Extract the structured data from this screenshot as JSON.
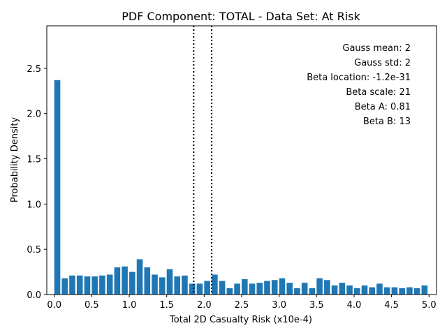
{
  "chart_data": {
    "type": "bar",
    "title": "PDF Component: TOTAL - Data Set: At Risk",
    "xlabel": "Total 2D Casualty Risk (x10e-4)",
    "ylabel": "Probability Density",
    "xlim": [
      -0.1,
      5.1
    ],
    "ylim": [
      0,
      2.97
    ],
    "bar_width": 0.08,
    "bar_color": "#1f77b4",
    "xticks": [
      0.0,
      0.5,
      1.0,
      1.5,
      2.0,
      2.5,
      3.0,
      3.5,
      4.0,
      4.5,
      5.0
    ],
    "xtick_labels": [
      "0.0",
      "0.5",
      "1.0",
      "1.5",
      "2.0",
      "2.5",
      "3.0",
      "3.5",
      "4.0",
      "4.5",
      "5.0"
    ],
    "yticks": [
      0.0,
      0.5,
      1.0,
      1.5,
      2.0,
      2.5
    ],
    "ytick_labels": [
      "0.0",
      "0.5",
      "1.0",
      "1.5",
      "2.0",
      "2.5"
    ],
    "x": [
      0.04,
      0.14,
      0.24,
      0.34,
      0.44,
      0.54,
      0.64,
      0.74,
      0.84,
      0.94,
      1.04,
      1.14,
      1.24,
      1.34,
      1.44,
      1.54,
      1.64,
      1.74,
      1.84,
      1.94,
      2.04,
      2.14,
      2.24,
      2.34,
      2.44,
      2.54,
      2.64,
      2.74,
      2.84,
      2.94,
      3.04,
      3.14,
      3.24,
      3.34,
      3.44,
      3.54,
      3.64,
      3.74,
      3.84,
      3.94,
      4.04,
      4.14,
      4.24,
      4.34,
      4.44,
      4.54,
      4.64,
      4.74,
      4.84,
      4.94
    ],
    "values": [
      2.37,
      0.18,
      0.21,
      0.21,
      0.2,
      0.2,
      0.21,
      0.22,
      0.3,
      0.31,
      0.25,
      0.39,
      0.3,
      0.22,
      0.19,
      0.28,
      0.2,
      0.21,
      0.12,
      0.12,
      0.15,
      0.22,
      0.15,
      0.07,
      0.12,
      0.17,
      0.12,
      0.13,
      0.15,
      0.16,
      0.18,
      0.13,
      0.07,
      0.13,
      0.07,
      0.18,
      0.16,
      0.1,
      0.13,
      0.1,
      0.07,
      0.1,
      0.08,
      0.12,
      0.08,
      0.08,
      0.07,
      0.08,
      0.07,
      0.1
    ],
    "vlines": [
      1.86,
      2.1
    ],
    "annotations": [
      "Gauss mean: 2",
      "Gauss std: 2",
      "Beta location: -1.2e-31",
      "Beta scale: 21",
      "Beta A: 0.81",
      "Beta B: 13"
    ],
    "grid": false,
    "legend": "none"
  }
}
